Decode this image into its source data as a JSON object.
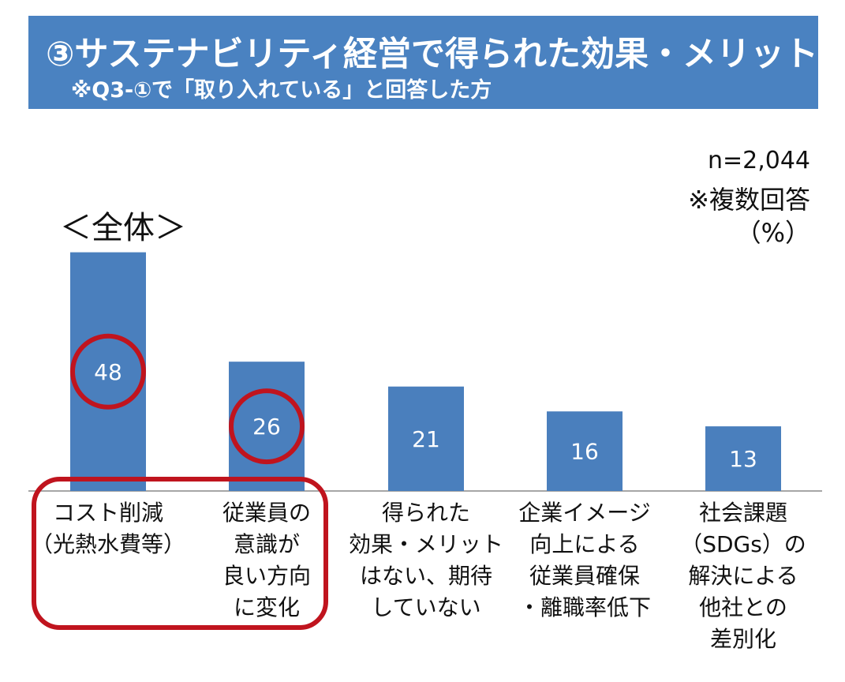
{
  "header": {
    "title": "③サステナビリティ経営で得られた効果・メリット",
    "subtitle": "※Q3-①で「取り入れている」と回答した方"
  },
  "notes": {
    "n": "n=2,044",
    "multiple": "※複数回答",
    "unit": "（%）"
  },
  "group_title": "＜全体＞",
  "colors": {
    "bar": "#4a7fbd",
    "banner": "#4a82c1",
    "highlight": "#c0141e"
  },
  "chart_data": {
    "type": "bar",
    "categories": [
      "コスト削減\n（光熱水費等）",
      "従業員の\n意識が\n良い方向\nに変化",
      "得られた\n効果・メリット\nはない、期待\nしていない",
      "企業イメージ\n向上による\n従業員確保\n・離職率低下",
      "社会課題\n（SDGs）の\n解決による\n他社との\n差別化"
    ],
    "values": [
      48,
      26,
      21,
      16,
      13
    ],
    "highlighted": [
      0,
      1
    ]
  }
}
